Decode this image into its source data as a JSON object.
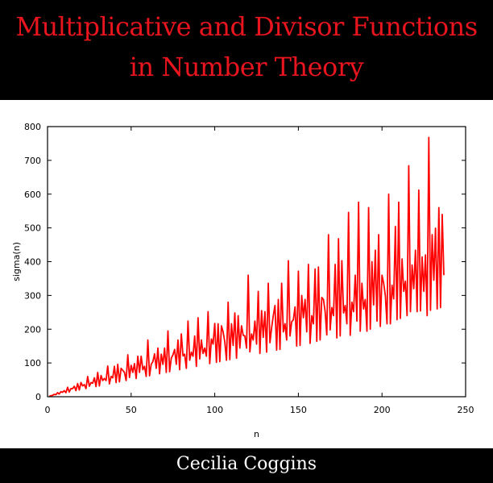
{
  "cover": {
    "title_line1": "Multiplicative and Divisor Functions",
    "title_line2": "in Number Theory",
    "author": "Cecilia Coggins",
    "title_color": "#e8141e",
    "band_color": "#000000",
    "author_color": "#ffffff"
  },
  "chart_data": {
    "type": "line",
    "title": "",
    "xlabel": "n",
    "ylabel": "sigma(n)",
    "xlim": [
      0,
      250
    ],
    "ylim": [
      0,
      800
    ],
    "x_ticks": [
      0,
      50,
      100,
      150,
      200,
      250
    ],
    "y_ticks": [
      0,
      100,
      200,
      300,
      400,
      500,
      600,
      700,
      800
    ],
    "grid": false,
    "series": [
      {
        "color": "#ff0000",
        "x_start": 1,
        "values": [
          1,
          3,
          4,
          7,
          6,
          12,
          8,
          15,
          13,
          18,
          12,
          28,
          14,
          24,
          24,
          31,
          18,
          39,
          20,
          42,
          32,
          36,
          24,
          60,
          31,
          42,
          40,
          56,
          30,
          72,
          32,
          63,
          48,
          54,
          48,
          91,
          38,
          60,
          56,
          90,
          42,
          96,
          44,
          84,
          78,
          72,
          48,
          124,
          57,
          93,
          72,
          98,
          54,
          120,
          72,
          120,
          80,
          90,
          60,
          168,
          62,
          96,
          104,
          127,
          84,
          144,
          68,
          126,
          96,
          144,
          72,
          195,
          74,
          114,
          124,
          140,
          96,
          168,
          80,
          186,
          121,
          126,
          84,
          224,
          108,
          132,
          120,
          180,
          90,
          234,
          112,
          168,
          128,
          144,
          120,
          252,
          98,
          171,
          156,
          217,
          102,
          216,
          104,
          210,
          192,
          162,
          108,
          280,
          110,
          216,
          152,
          248,
          114,
          240,
          144,
          210,
          182,
          180,
          144,
          360,
          133,
          186,
          168,
          224,
          156,
          312,
          128,
          255,
          176,
          252,
          132,
          336,
          160,
          204,
          240,
          270,
          138,
          288,
          140,
          336,
          192,
          216,
          168,
          403,
          180,
          222,
          228,
          266,
          150,
          372,
          152,
          300,
          234,
          288,
          192,
          392,
          158,
          240,
          216,
          378,
          164,
          384,
          168,
          294,
          288,
          252,
          183,
          480,
          198,
          264,
          240,
          392,
          174,
          468,
          180,
          403,
          248,
          270,
          216,
          546,
          182,
          280,
          252,
          360,
          224,
          576,
          194,
          336,
          260,
          288,
          194,
          560,
          200,
          400,
          272,
          434,
          224,
          480,
          208,
          360,
          336,
          300,
          216,
          600,
          216,
          330,
          290,
          504,
          228,
          576,
          232,
          408,
          312,
          342,
          240,
          684,
          252,
          390,
          320,
          434,
          252,
          612,
          254,
          414,
          312,
          420,
          240,
          768,
          256,
          480,
          345,
          499,
          260,
          560,
          264,
          540,
          360
        ]
      }
    ]
  }
}
